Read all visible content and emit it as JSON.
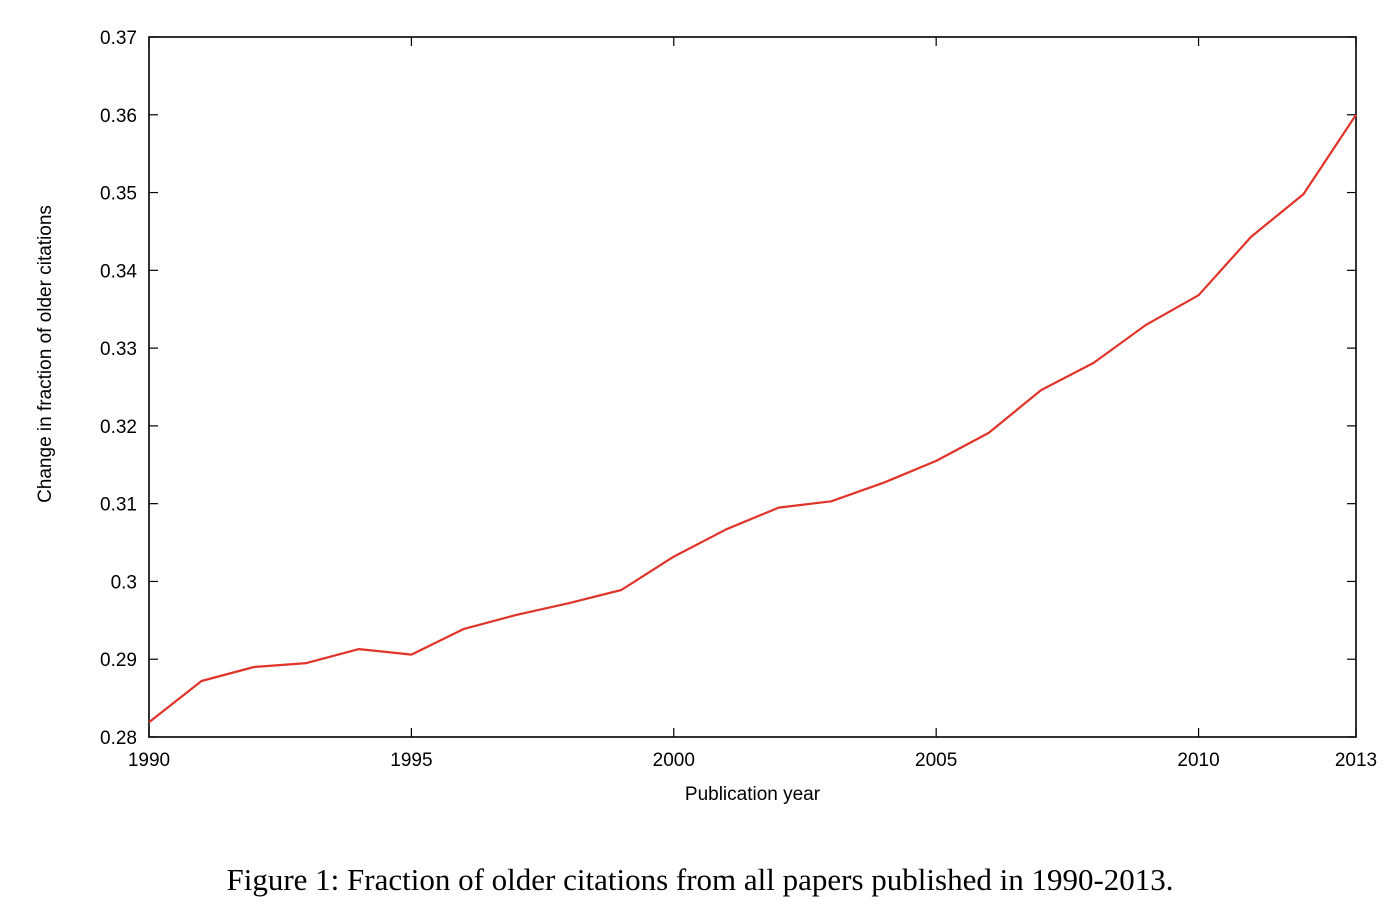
{
  "chart_data": {
    "type": "line",
    "xlabel": "Publication year",
    "ylabel": "Change in fraction of older citations",
    "xlim": [
      1990,
      2013
    ],
    "ylim": [
      0.28,
      0.37
    ],
    "xticks": [
      1990,
      1995,
      2000,
      2005,
      2010,
      2013
    ],
    "yticks": [
      0.28,
      0.29,
      0.3,
      0.31,
      0.32,
      0.33,
      0.34,
      0.35,
      0.36,
      0.37
    ],
    "xtick_labels": [
      "1990",
      "1995",
      "2000",
      "2005",
      "2010",
      "2013"
    ],
    "ytick_labels": [
      "0.28",
      "0.29",
      "0.3",
      "0.31",
      "0.32",
      "0.33",
      "0.34",
      "0.35",
      "0.36",
      "0.37"
    ],
    "grid": false,
    "series": [
      {
        "color": "#e0342a",
        "x": [
          1990,
          1991,
          1992,
          1993,
          1994,
          1995,
          1996,
          1997,
          1998,
          1999,
          2000,
          2001,
          2002,
          2003,
          2004,
          2005,
          2006,
          2007,
          2008,
          2009,
          2010,
          2011,
          2012,
          2013
        ],
        "y": [
          0.2819,
          0.2872,
          0.289,
          0.2895,
          0.2913,
          0.2906,
          0.2939,
          0.2957,
          0.2972,
          0.2989,
          0.3032,
          0.3067,
          0.3095,
          0.3103,
          0.3127,
          0.3155,
          0.3191,
          0.3246,
          0.3281,
          0.333,
          0.3368,
          0.3443,
          0.3498,
          0.36
        ]
      }
    ]
  },
  "caption": "Figure 1: Fraction of older citations from all papers published in 1990-2013."
}
